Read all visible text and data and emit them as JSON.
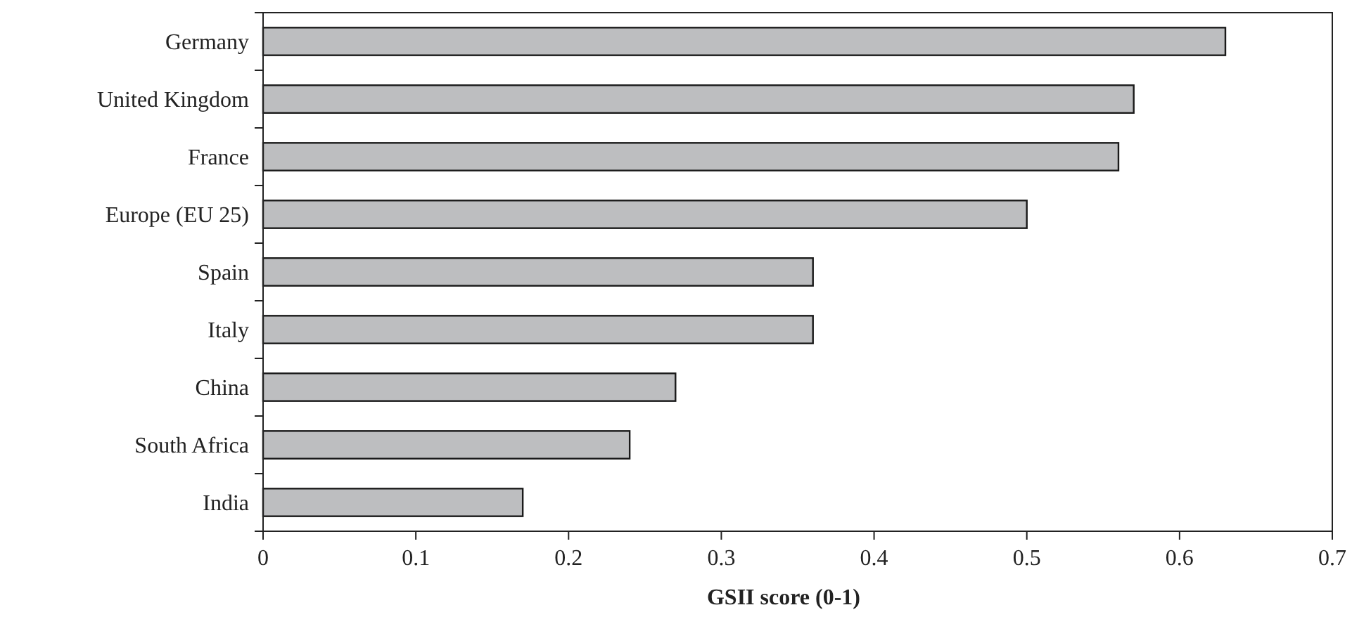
{
  "chart_data": {
    "type": "bar",
    "orientation": "horizontal",
    "xlabel": "GSII score (0-1)",
    "categories": [
      "Germany",
      "United Kingdom",
      "France",
      "Europe (EU 25)",
      "Spain",
      "Italy",
      "China",
      "South Africa",
      "India"
    ],
    "values": [
      0.63,
      0.57,
      0.56,
      0.5,
      0.36,
      0.36,
      0.27,
      0.24,
      0.17
    ],
    "color": "#bdbec0",
    "xlim": [
      0,
      0.7
    ],
    "xticks": [
      0,
      0.1,
      0.2,
      0.3,
      0.4,
      0.5,
      0.6,
      0.7
    ],
    "grid": false
  }
}
